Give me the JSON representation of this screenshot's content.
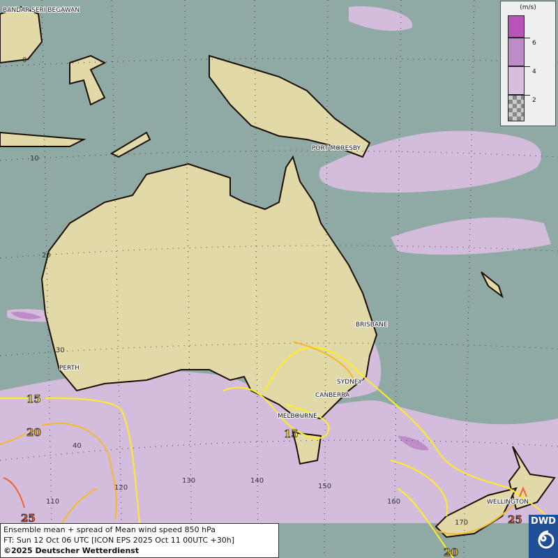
{
  "legend": {
    "unit": "(m/s)",
    "ticks": [
      "6",
      "4",
      "2"
    ],
    "colors": [
      "#b953b9",
      "#be8cc8",
      "#d8bede",
      "#c8c8c8"
    ]
  },
  "info": {
    "line1": "Ensemble mean + spread of Mean wind speed 850 hPa",
    "line2": "FT: Sun 12 Oct 06 UTC [ICON EPS 2025 Oct 11 00UTC +30h]",
    "line3": "©2025 Deutscher Wetterdienst"
  },
  "logo": "DWD",
  "cities": [
    "BANDAR SERI BEGAWAN",
    "PORT MORESBY",
    "BRISBANE",
    "PERTH",
    "SYDNEY",
    "CANBERRA",
    "MELBOURNE",
    "WELLINGTON"
  ],
  "lat_labels": [
    "0",
    "10",
    "20",
    "30",
    "40"
  ],
  "lon_labels": [
    "110",
    "120",
    "130",
    "140",
    "150",
    "160",
    "170"
  ],
  "contour_labels": [
    "15",
    "20",
    "25",
    "15",
    "25",
    "20"
  ],
  "colors": {
    "ocean": "#8fa9a5",
    "spread_low": "#d4bddc",
    "contour_15": "#ffee22",
    "contour_20": "#f5b82a",
    "contour_25": "#f06030"
  }
}
